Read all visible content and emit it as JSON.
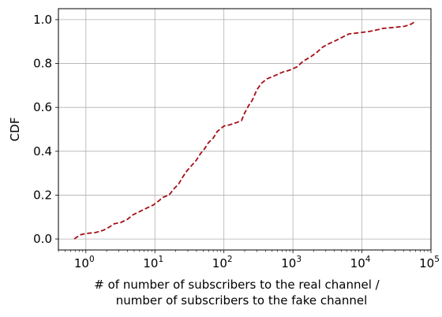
{
  "chart_data": {
    "type": "line",
    "title": "",
    "ylabel": "CDF",
    "xlabel_lines": [
      "# of number of subscribers to the real channel /",
      "number of subscribers to the fake channel"
    ],
    "xscale": "log",
    "xlim": [
      0.4,
      100000
    ],
    "ylim": [
      -0.05,
      1.05
    ],
    "grid": true,
    "x_ticks": [
      {
        "value": 1,
        "base": "10",
        "exp": "0"
      },
      {
        "value": 10,
        "base": "10",
        "exp": "1"
      },
      {
        "value": 100,
        "base": "10",
        "exp": "2"
      },
      {
        "value": 1000,
        "base": "10",
        "exp": "3"
      },
      {
        "value": 10000,
        "base": "10",
        "exp": "4"
      },
      {
        "value": 100000,
        "base": "10",
        "exp": "5"
      }
    ],
    "y_ticks": [
      {
        "value": 0.0,
        "label": "0.0"
      },
      {
        "value": 0.2,
        "label": "0.2"
      },
      {
        "value": 0.4,
        "label": "0.4"
      },
      {
        "value": 0.6,
        "label": "0.6"
      },
      {
        "value": 0.8,
        "label": "0.8"
      },
      {
        "value": 1.0,
        "label": "1.0"
      }
    ],
    "series": [
      {
        "color": "#a50f15",
        "style": "dashed",
        "points": [
          [
            0.68,
            0.0
          ],
          [
            0.75,
            0.01
          ],
          [
            0.85,
            0.02
          ],
          [
            1.0,
            0.025
          ],
          [
            1.4,
            0.03
          ],
          [
            1.8,
            0.04
          ],
          [
            2.2,
            0.055
          ],
          [
            2.6,
            0.07
          ],
          [
            3.2,
            0.075
          ],
          [
            4.0,
            0.09
          ],
          [
            4.8,
            0.11
          ],
          [
            6.0,
            0.125
          ],
          [
            7.5,
            0.14
          ],
          [
            9.5,
            0.155
          ],
          [
            11.5,
            0.175
          ],
          [
            13.0,
            0.19
          ],
          [
            16.0,
            0.2
          ],
          [
            19.0,
            0.23
          ],
          [
            22.0,
            0.25
          ],
          [
            25.0,
            0.28
          ],
          [
            29.0,
            0.31
          ],
          [
            33.0,
            0.33
          ],
          [
            40.0,
            0.36
          ],
          [
            46.0,
            0.39
          ],
          [
            52.0,
            0.41
          ],
          [
            60.0,
            0.44
          ],
          [
            70.0,
            0.46
          ],
          [
            80.0,
            0.49
          ],
          [
            100.0,
            0.515
          ],
          [
            120.0,
            0.52
          ],
          [
            150.0,
            0.53
          ],
          [
            180.0,
            0.54
          ],
          [
            200.0,
            0.575
          ],
          [
            230.0,
            0.61
          ],
          [
            260.0,
            0.635
          ],
          [
            300.0,
            0.68
          ],
          [
            350.0,
            0.71
          ],
          [
            420.0,
            0.73
          ],
          [
            550.0,
            0.745
          ],
          [
            700.0,
            0.76
          ],
          [
            900.0,
            0.77
          ],
          [
            1150.0,
            0.785
          ],
          [
            1400.0,
            0.81
          ],
          [
            1800.0,
            0.83
          ],
          [
            2200.0,
            0.85
          ],
          [
            2700.0,
            0.875
          ],
          [
            3300.0,
            0.89
          ],
          [
            4200.0,
            0.905
          ],
          [
            5200.0,
            0.92
          ],
          [
            6500.0,
            0.935
          ],
          [
            9000.0,
            0.94
          ],
          [
            12000.0,
            0.945
          ],
          [
            15000.0,
            0.95
          ],
          [
            20000.0,
            0.96
          ],
          [
            30000.0,
            0.965
          ],
          [
            42000.0,
            0.97
          ],
          [
            52000.0,
            0.98
          ],
          [
            58000.0,
            0.99
          ]
        ]
      }
    ]
  }
}
